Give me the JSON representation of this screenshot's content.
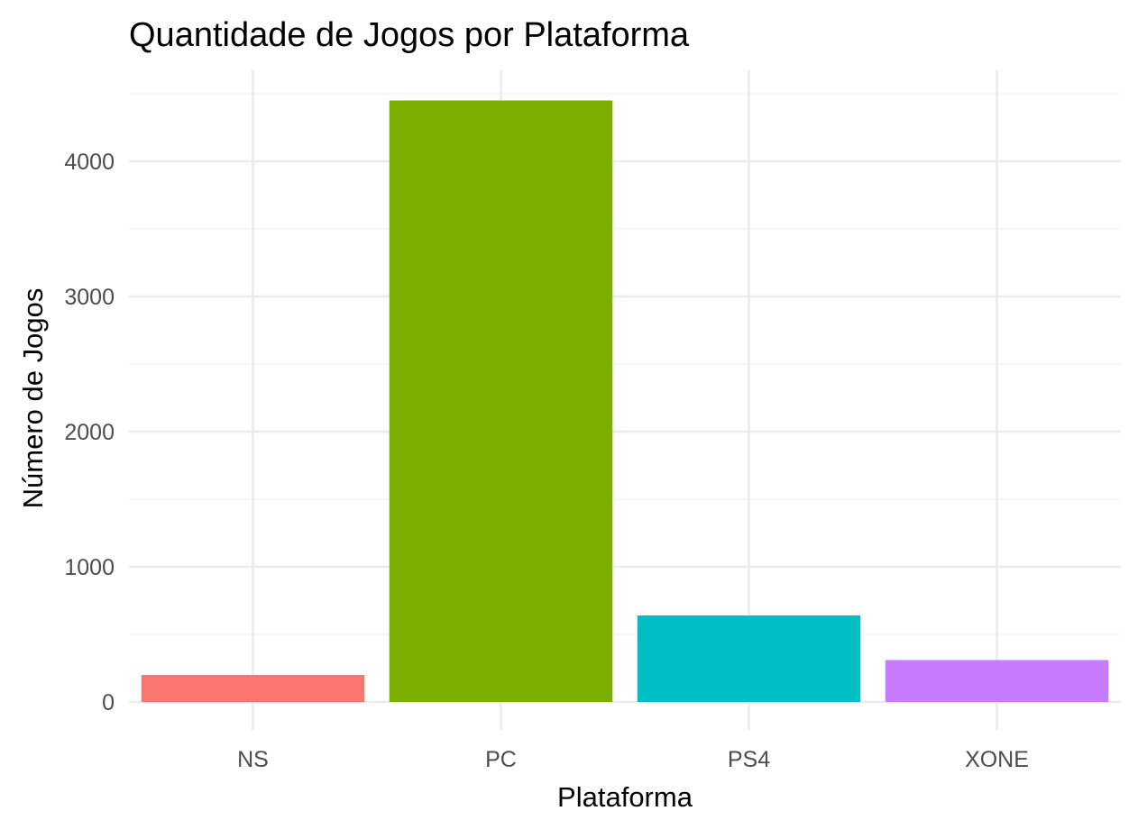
{
  "chart_data": {
    "type": "bar",
    "title": "Quantidade de Jogos por Plataforma",
    "xlabel": "Plataforma",
    "ylabel": "Número de Jogos",
    "categories": [
      "NS",
      "PC",
      "PS4",
      "XONE"
    ],
    "values": [
      200,
      4450,
      640,
      310
    ],
    "colors": [
      "#F8766D",
      "#7CAE00",
      "#00BFC4",
      "#C77CFF"
    ],
    "ylim": [
      0,
      4500
    ],
    "yticks": [
      0,
      1000,
      2000,
      3000,
      4000
    ],
    "grid": true,
    "legend": "none"
  }
}
